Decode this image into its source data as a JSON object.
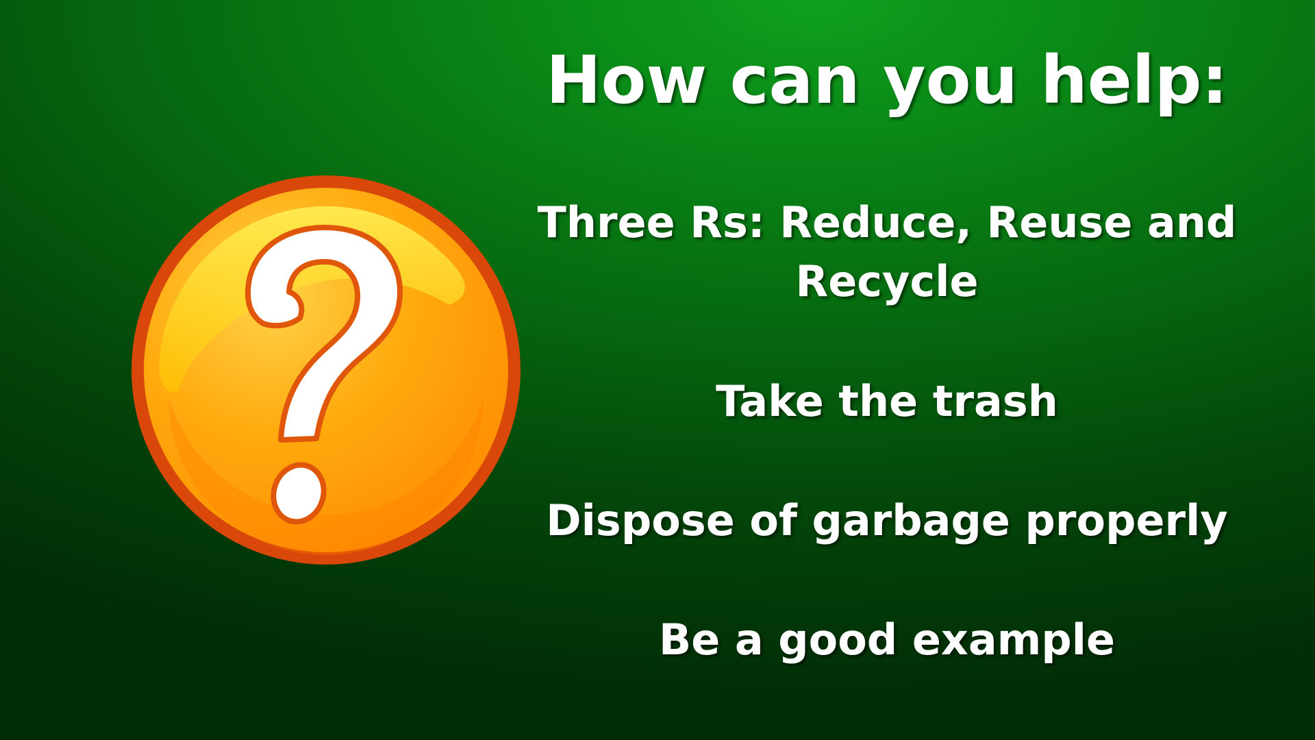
{
  "slide": {
    "title": "How can you help:",
    "items": [
      "Three Rs: Reduce, Reuse and Recycle",
      "Take the trash",
      "Dispose of garbage properly",
      "Be a good example"
    ],
    "icon": "question-mark-icon",
    "colors": {
      "background": "#0a8a17",
      "text": "#ffffff",
      "icon_fill": "#ffa500",
      "icon_border": "#e0560a"
    }
  }
}
